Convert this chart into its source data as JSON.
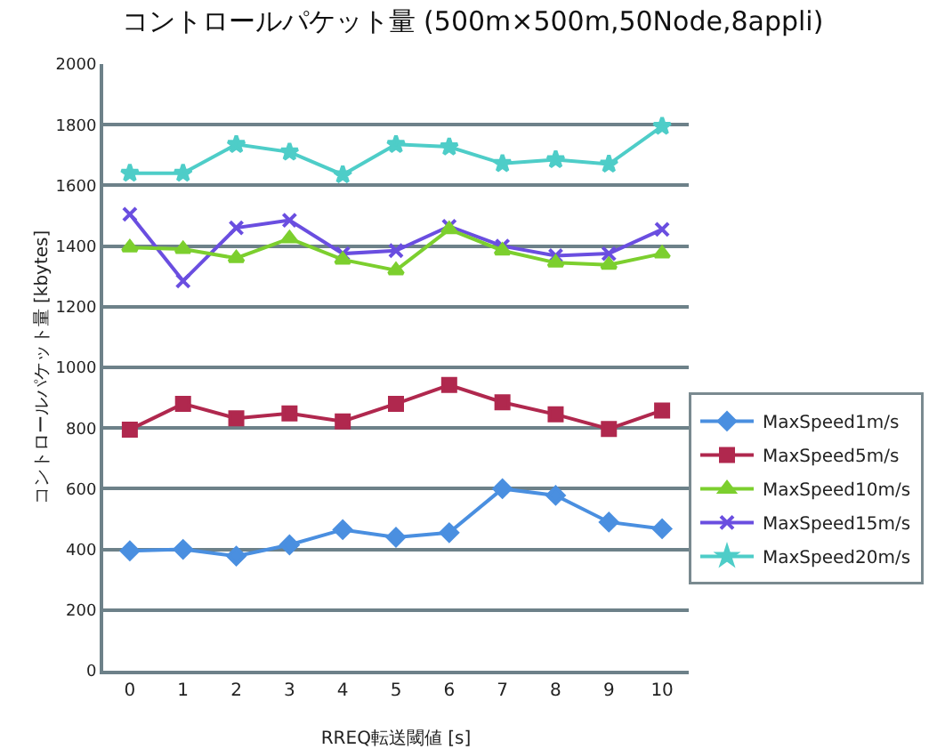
{
  "chart_data": {
    "type": "line",
    "title": "コントロールパケット量 (500m×500m,50Node,8appli)",
    "xlabel": "RREQ転送閾値 [s]",
    "ylabel": "コントロールパケット量 [kbytes]",
    "categories": [
      "0",
      "1",
      "2",
      "3",
      "4",
      "5",
      "6",
      "7",
      "8",
      "9",
      "10"
    ],
    "ylim": [
      0,
      2000
    ],
    "yticks": [
      0,
      200,
      400,
      600,
      800,
      1000,
      1200,
      1400,
      1600,
      1800,
      2000
    ],
    "grid": "y",
    "legend": "right",
    "line_style": "solid",
    "series": [
      {
        "name": "MaxSpeed1m/s",
        "color": "#4a8fe0",
        "marker": "diamond",
        "values": [
          395,
          400,
          378,
          415,
          465,
          440,
          455,
          600,
          578,
          490,
          468
        ]
      },
      {
        "name": "MaxSpeed5m/s",
        "color": "#b0284e",
        "marker": "square",
        "values": [
          795,
          880,
          832,
          848,
          822,
          880,
          942,
          885,
          845,
          797,
          858
        ]
      },
      {
        "name": "MaxSpeed10m/s",
        "color": "#7ccf2e",
        "marker": "triangle",
        "values": [
          1395,
          1390,
          1360,
          1425,
          1355,
          1320,
          1455,
          1385,
          1345,
          1338,
          1375
        ]
      },
      {
        "name": "MaxSpeed15m/s",
        "color": "#6a4ee0",
        "marker": "cross",
        "values": [
          1505,
          1285,
          1460,
          1485,
          1375,
          1385,
          1465,
          1400,
          1368,
          1375,
          1455
        ]
      },
      {
        "name": "MaxSpeed20m/s",
        "color": "#4ecdc8",
        "marker": "star",
        "values": [
          1640,
          1640,
          1735,
          1710,
          1635,
          1735,
          1727,
          1672,
          1685,
          1670,
          1795
        ]
      }
    ]
  }
}
